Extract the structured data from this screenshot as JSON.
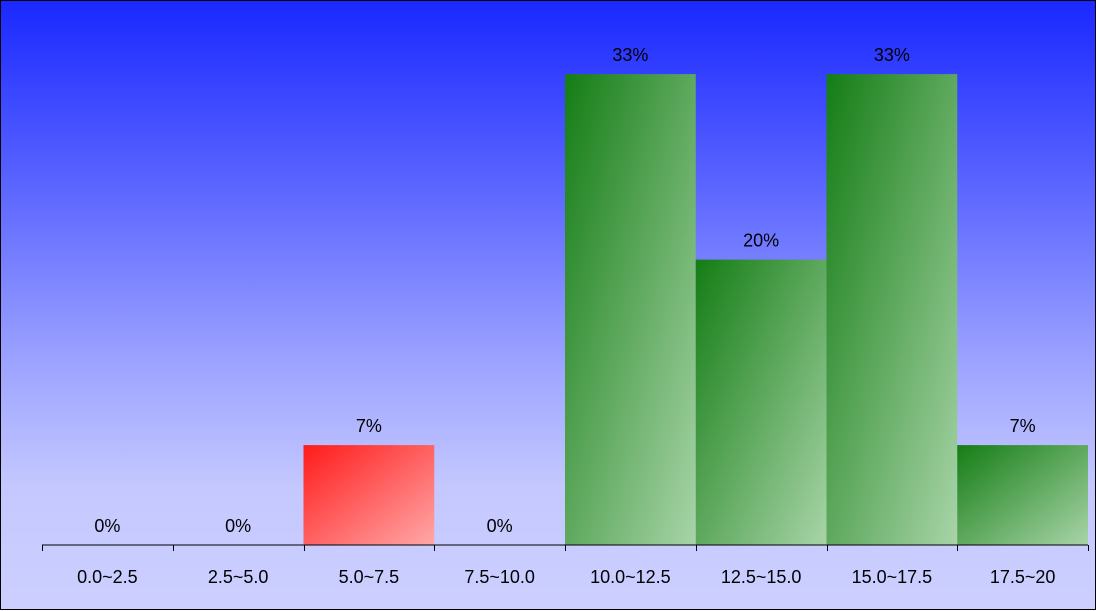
{
  "chart_data": {
    "type": "bar",
    "categories": [
      "0.0~2.5",
      "2.5~5.0",
      "5.0~7.5",
      "7.5~10.0",
      "10.0~12.5",
      "12.5~15.0",
      "15.0~17.5",
      "17.5~20"
    ],
    "values": [
      0,
      0,
      7,
      0,
      33,
      20,
      33,
      7
    ],
    "data_labels": [
      "0%",
      "0%",
      "7%",
      "0%",
      "33%",
      "20%",
      "33%",
      "7%"
    ],
    "highlight_index": 2,
    "colors": {
      "highlight_dark": "#ff1a1a",
      "highlight_light": "#ffa8a8",
      "bar_dark": "#147d14",
      "bar_light": "#a8d4a8"
    },
    "ylim": [
      0,
      40
    ],
    "title": "",
    "xlabel": "",
    "ylabel": "",
    "legend": "none",
    "grid": false
  }
}
